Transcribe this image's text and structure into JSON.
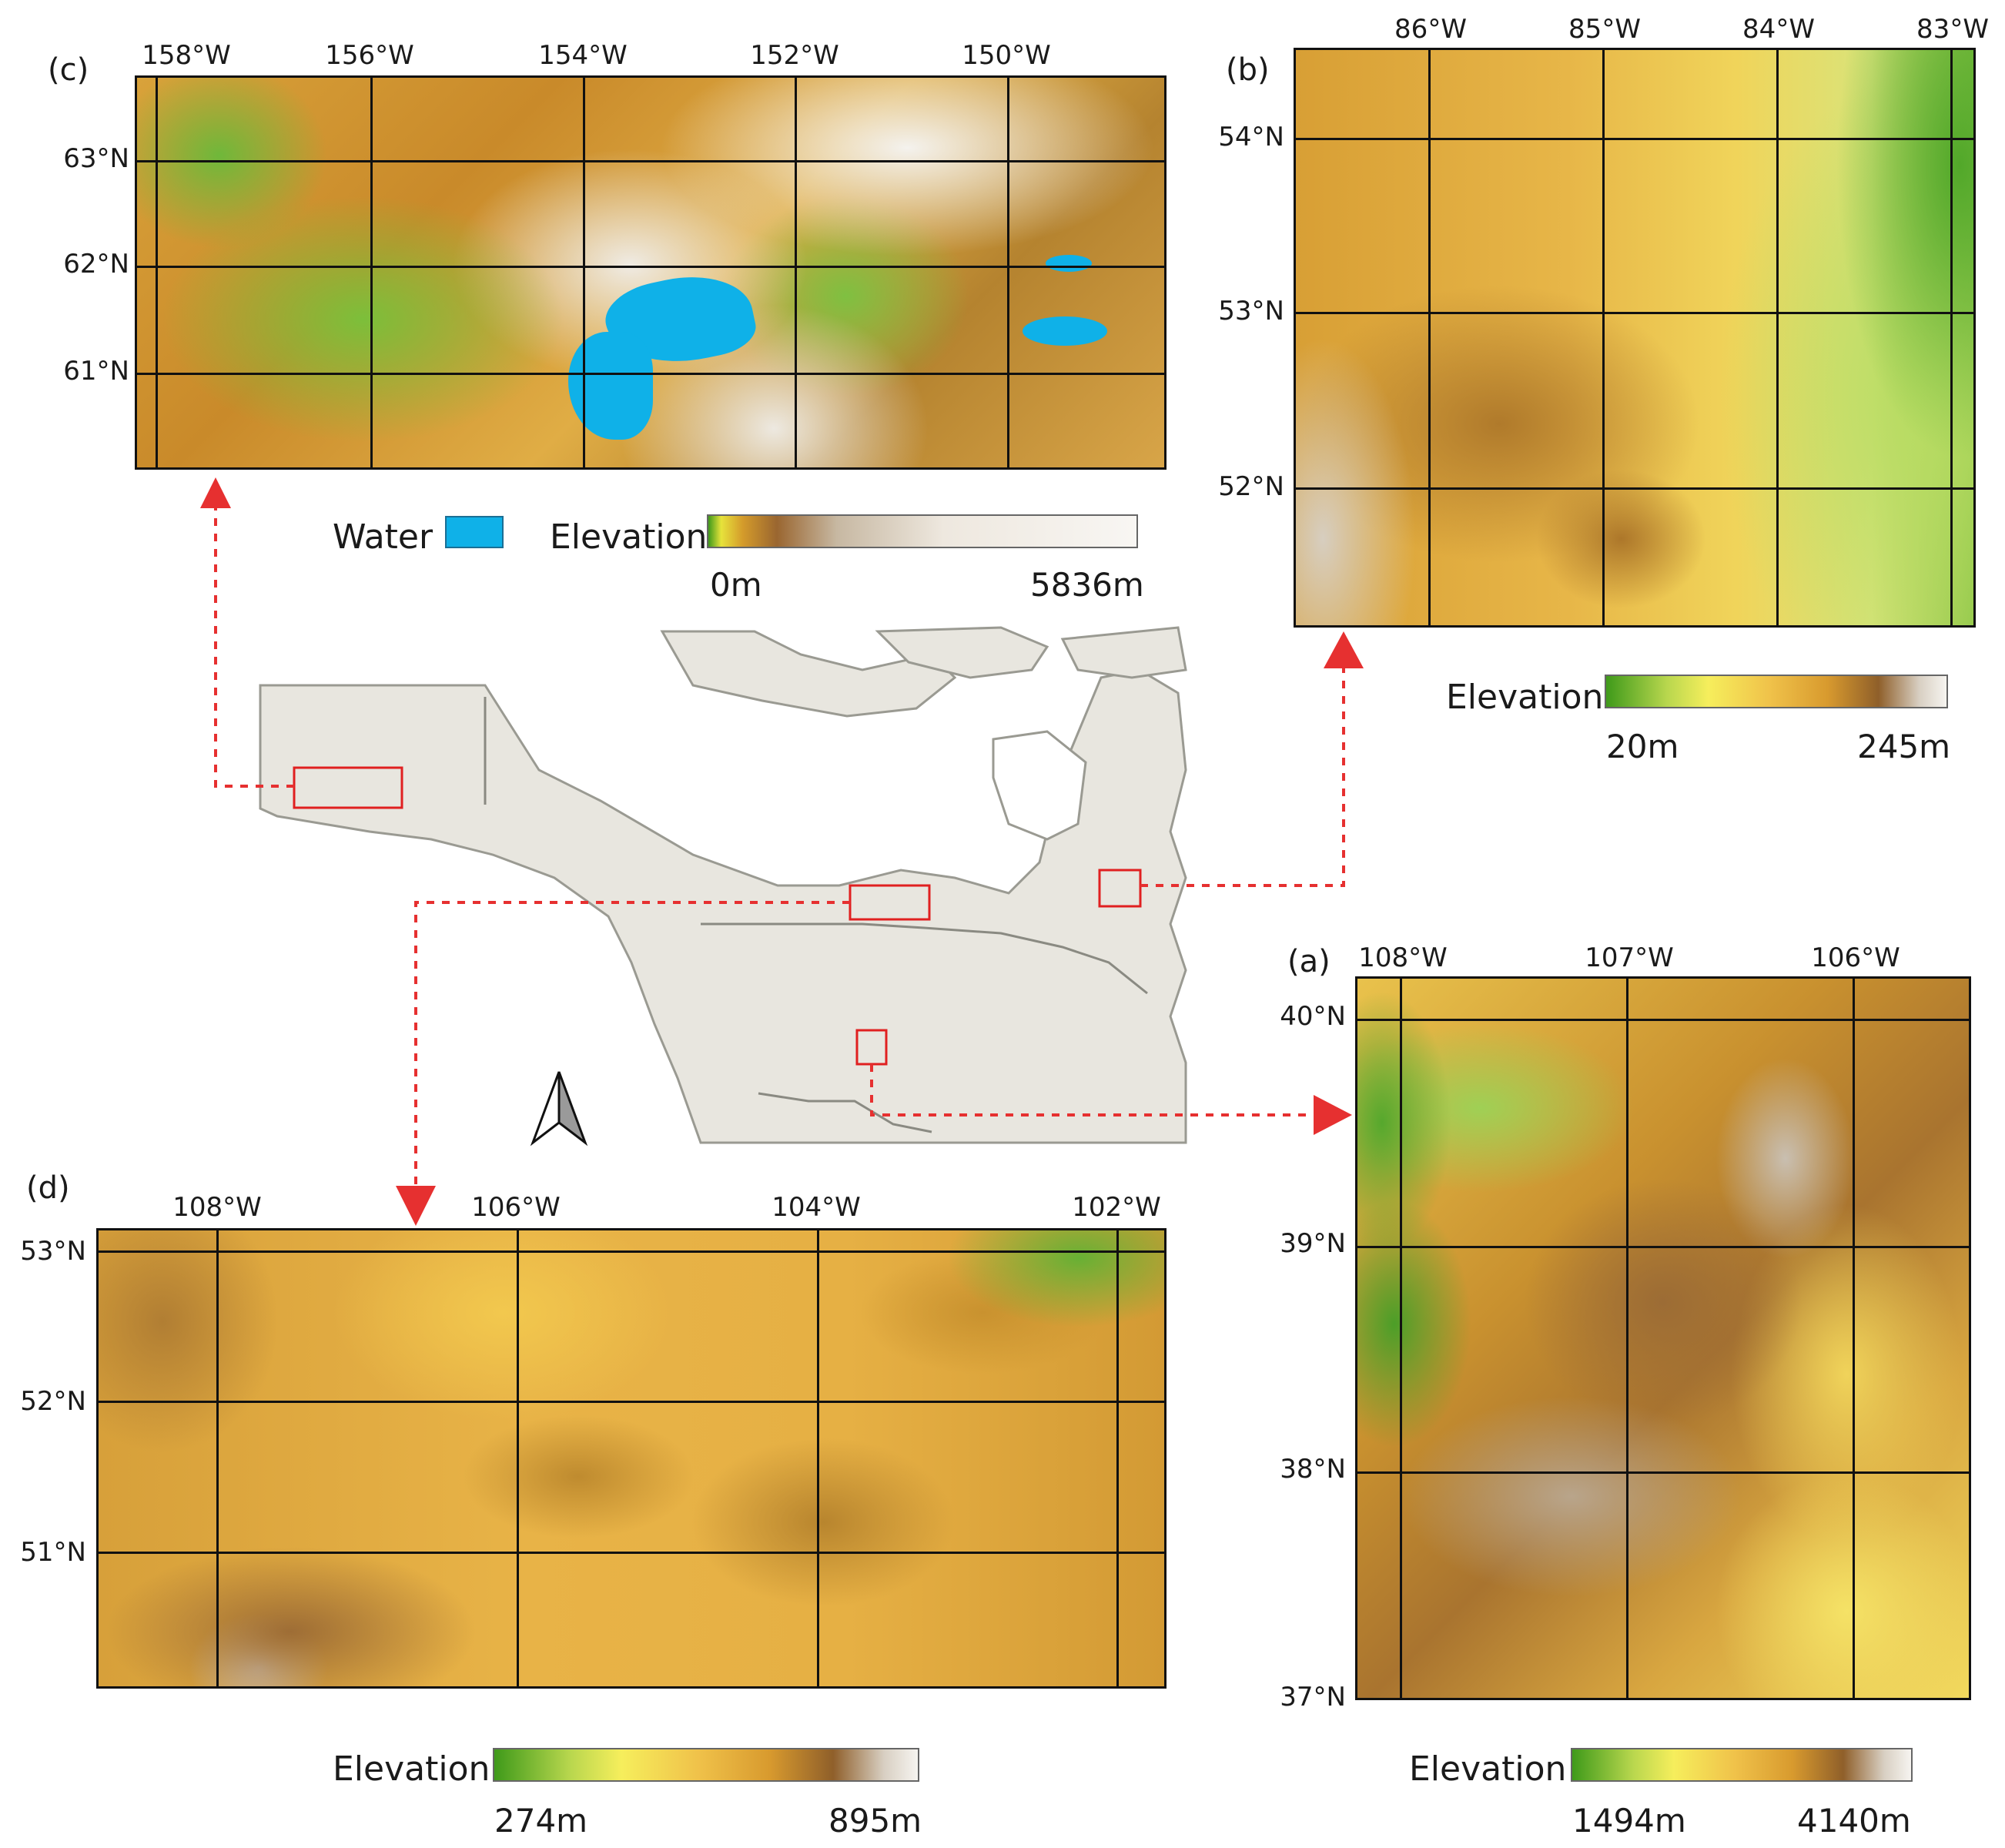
{
  "panels": {
    "c": {
      "label": "(c)",
      "lon_labels": [
        "158°W",
        "156°W",
        "154°W",
        "152°W",
        "150°W"
      ],
      "lat_labels": [
        "63°N",
        "62°N",
        "61°N"
      ],
      "legend": {
        "water_label": "Water",
        "title": "Elevation",
        "min": "0m",
        "max": "5836m"
      }
    },
    "b": {
      "label": "(b)",
      "lon_labels": [
        "86°W",
        "85°W",
        "84°W",
        "83°W"
      ],
      "lat_labels": [
        "54°N",
        "53°N",
        "52°N"
      ],
      "legend": {
        "title": "Elevation",
        "min": "20m",
        "max": "245m"
      }
    },
    "a": {
      "label": "(a)",
      "lon_labels": [
        "108°W",
        "107°W",
        "106°W"
      ],
      "lat_labels": [
        "40°N",
        "39°N",
        "38°N",
        "37°N"
      ],
      "legend": {
        "title": "Elevation",
        "min": "1494m",
        "max": "4140m"
      }
    },
    "d": {
      "label": "(d)",
      "lon_labels": [
        "108°W",
        "106°W",
        "104°W",
        "102°W"
      ],
      "lat_labels": [
        "53°N",
        "52°N",
        "51°N"
      ],
      "legend": {
        "title": "Elevation",
        "min": "274m",
        "max": "895m"
      }
    }
  },
  "colors": {
    "water": "#0fb1e8",
    "land_overview": "#e8e6df",
    "locator_box": "#e02020",
    "connector": "#e63030"
  },
  "icons": [
    "north-arrow-icon"
  ]
}
